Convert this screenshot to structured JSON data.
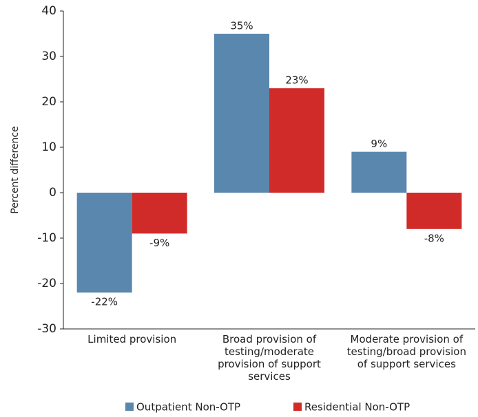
{
  "chart_data": {
    "type": "bar",
    "y_label": "Percent difference",
    "categories": [
      "Limited provision",
      "Broad provision of testing/moderate provision of support services",
      "Moderate provision of testing/broad provision of support services"
    ],
    "series": [
      {
        "name": "Outpatient Non-OTP",
        "color": "#5a87ad",
        "values": [
          -22,
          35,
          9
        ],
        "value_labels": [
          "-22%",
          "35%",
          "9%"
        ]
      },
      {
        "name": "Residential Non-OTP",
        "color": "#d12b29",
        "values": [
          -9,
          23,
          -8
        ],
        "value_labels": [
          "-9%",
          "23%",
          "-8%"
        ]
      }
    ],
    "ylim": [
      -30,
      40
    ],
    "yticks": [
      -30,
      -20,
      -10,
      0,
      10,
      20,
      30,
      40
    ],
    "grid": false
  }
}
